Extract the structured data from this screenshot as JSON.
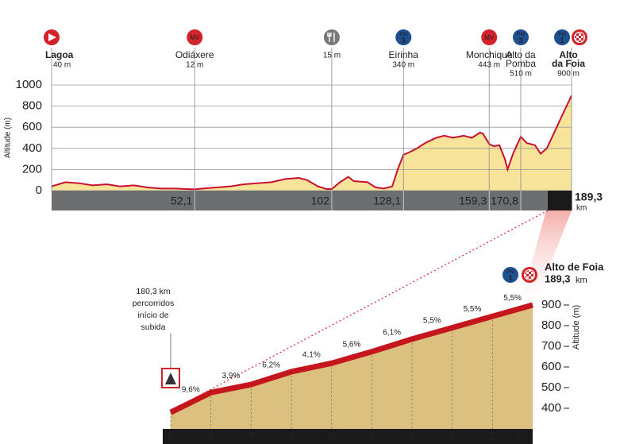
{
  "chart_data": [
    {
      "type": "area",
      "y_label": "Altitude (m)",
      "x_unit": "km",
      "xlim": [
        0,
        189.3
      ],
      "ylim": [
        0,
        1000
      ],
      "yticks": [
        0,
        200,
        400,
        600,
        800,
        1000
      ],
      "grid": true,
      "xticks": [
        {
          "value": 52.1,
          "label": "52,1"
        },
        102,
        {
          "value": 128.1,
          "label": "128,1"
        },
        {
          "value": 159.3,
          "label": "159,3"
        },
        {
          "value": 170.8,
          "label": "170,8"
        },
        {
          "value": 189.3,
          "label": "189,3"
        }
      ],
      "line_color": "#c8102e",
      "fill_color": "#f7e39a",
      "x": [
        0,
        5,
        10,
        15,
        20,
        25,
        30,
        35,
        40,
        45,
        52.1,
        55,
        60,
        65,
        70,
        75,
        80,
        85,
        90,
        93,
        97,
        100,
        102,
        105,
        108,
        110,
        115,
        118,
        121,
        124,
        126,
        128.1,
        130,
        133,
        136,
        140,
        143,
        146,
        150,
        153,
        156,
        157,
        159.3,
        161,
        163,
        165,
        166,
        168,
        170.8,
        173,
        176,
        178,
        180.3,
        183,
        186,
        189.3
      ],
      "values": [
        40,
        80,
        70,
        50,
        60,
        40,
        50,
        30,
        20,
        20,
        12,
        20,
        30,
        40,
        60,
        70,
        80,
        110,
        120,
        100,
        40,
        15,
        15,
        80,
        130,
        90,
        80,
        30,
        20,
        40,
        200,
        340,
        360,
        400,
        450,
        500,
        520,
        500,
        520,
        500,
        550,
        540,
        443,
        420,
        430,
        300,
        200,
        350,
        510,
        450,
        430,
        350,
        400,
        550,
        720,
        900
      ],
      "waypoints": [
        {
          "km": 0,
          "icon": "start",
          "name_lines": [
            "Lagoa"
          ],
          "elevation_label": "40 m"
        },
        {
          "km": 52.1,
          "icon": "mv",
          "icon_text": "MV",
          "name_lines": [
            "Odiáxere"
          ],
          "elevation_label": "12 m"
        },
        {
          "km": 102,
          "icon": "feed",
          "name_lines": [],
          "elevation_label": "15 m"
        },
        {
          "km": 128.1,
          "icon": "pm",
          "icon_text": "PM",
          "icon_number": 3,
          "name_lines": [
            "Eirinha"
          ],
          "elevation_label": "340 m"
        },
        {
          "km": 159.3,
          "icon": "mv",
          "icon_text": "MV",
          "name_lines": [
            "Monchique"
          ],
          "elevation_label": "443 m"
        },
        {
          "km": 170.8,
          "icon": "pm",
          "icon_text": "PM",
          "icon_number": 3,
          "name_lines": [
            "Alto da",
            "Pomba"
          ],
          "elevation_label": "510 m"
        },
        {
          "km": 189.3,
          "icon": "pm-finish",
          "icon_text": "PM",
          "icon_number": 1,
          "name_lines": [
            "Alto",
            "da Foia"
          ],
          "elevation_label": "900 m"
        }
      ]
    },
    {
      "type": "area",
      "y_label": "Altitude (m)",
      "x_unit": "km",
      "xlim": [
        9,
        0
      ],
      "ylim": [
        300,
        900
      ],
      "yticks": [
        400,
        500,
        600,
        700,
        800,
        900
      ],
      "xticks": [
        9,
        8,
        7,
        6,
        5,
        4,
        3,
        2,
        1
      ],
      "line_color": "#c4161c",
      "fill_color": "#dcc080",
      "x": [
        9,
        8,
        7,
        6,
        5,
        4,
        3,
        2,
        1,
        0
      ],
      "values": [
        380,
        476,
        515,
        577,
        618,
        674,
        735,
        790,
        845,
        900
      ],
      "gradients": [
        9.6,
        3.9,
        6.2,
        4.1,
        5.6,
        6.1,
        5.5,
        5.5,
        5.5
      ],
      "gradient_labels": [
        "9,6%",
        "3,9%",
        "6,2%",
        "4,1%",
        "5,6%",
        "6,1%",
        "5,5%",
        "5,5%",
        "5,5%"
      ],
      "start_note": [
        "180,3 km",
        "percorridos",
        "início de",
        "subida"
      ],
      "finish": {
        "icon_text": "PM",
        "icon_number": 1,
        "name": "Alto de Foia",
        "km_label": "189,3",
        "km_unit": "km"
      }
    }
  ]
}
